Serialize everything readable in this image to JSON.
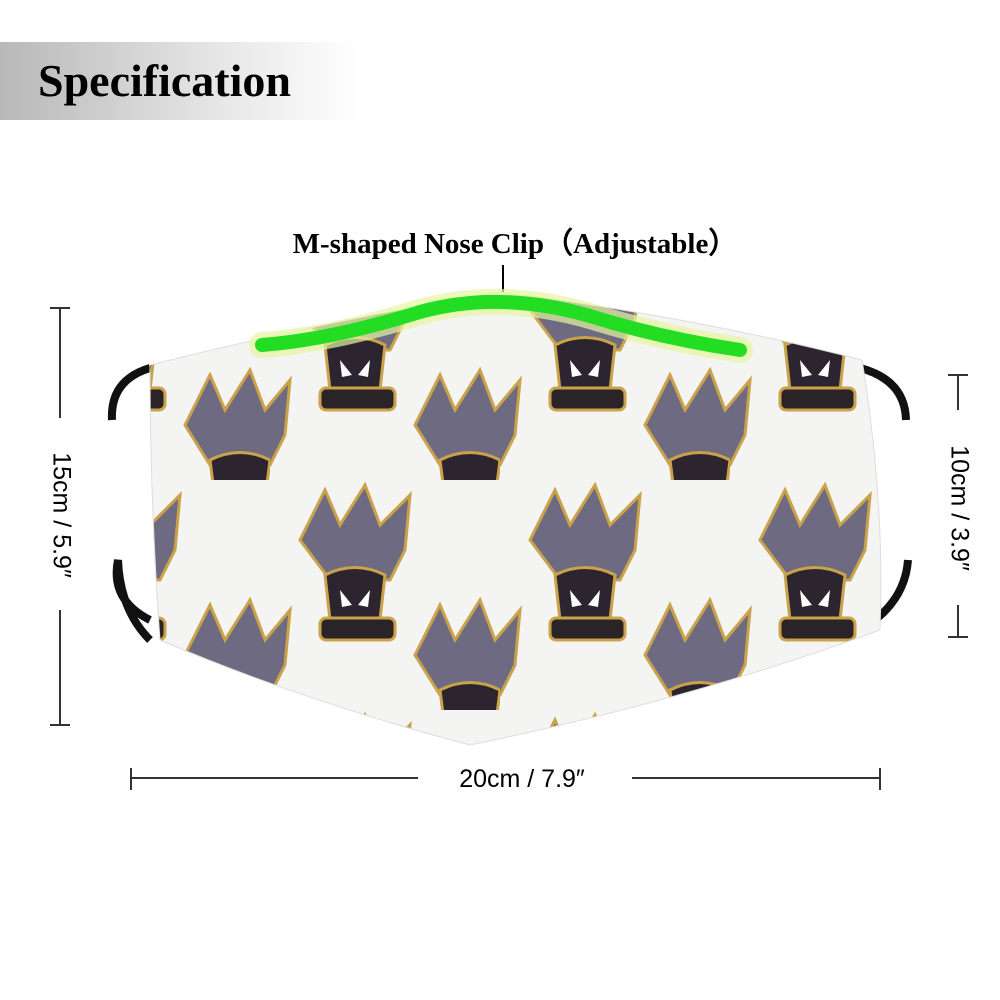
{
  "header": {
    "title": "Specification"
  },
  "callouts": {
    "nose_clip": "M-shaped Nose Clip（Adjustable）"
  },
  "dimensions": {
    "height_outer": "15cm / 5.9″",
    "height_inner": "10cm / 3.9″",
    "width": "20cm / 7.9″"
  }
}
